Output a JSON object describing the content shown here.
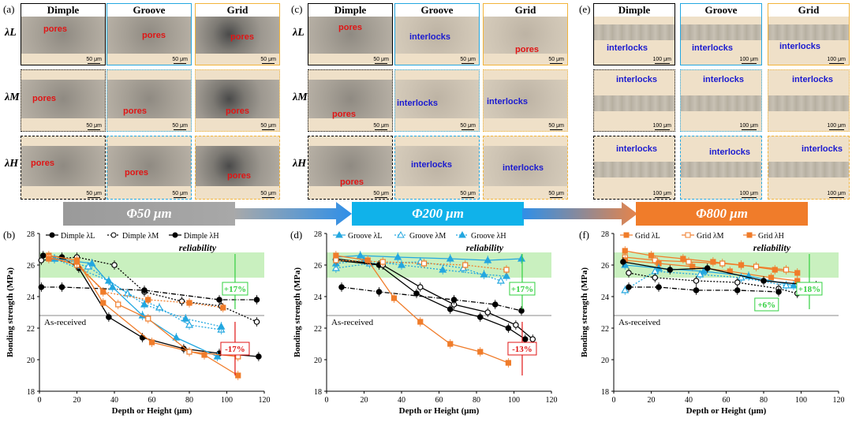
{
  "panel_labels": [
    "(a)",
    "(b)",
    "(c)",
    "(d)",
    "(e)",
    "(f)"
  ],
  "row_labels": [
    "λL",
    "λM",
    "λH"
  ],
  "column_headers": [
    "Dimple",
    "Groove",
    "Grid"
  ],
  "scale_bars": {
    "s50": "50 μm",
    "s100": "100 μm"
  },
  "annotations": {
    "pores": "pores",
    "interlocks": "interlocks"
  },
  "banners": {
    "b1": "Φ50 μm",
    "b2": "Φ200 μm",
    "b3": "Φ800 μm"
  },
  "colors": {
    "black": "#000000",
    "blue": "#23a7e0",
    "orange": "#f07c2a",
    "green_band": "#c9f0bf"
  },
  "chart_data": [
    {
      "type": "line",
      "panel": "(b)",
      "xlabel": "Depth or Height (μm)",
      "ylabel": "Bonding strength (MPa)",
      "xlim": [
        0,
        120
      ],
      "ylim": [
        18,
        28
      ],
      "xticks": [
        0,
        20,
        40,
        60,
        80,
        100,
        120
      ],
      "yticks": [
        18,
        20,
        22,
        24,
        26,
        28
      ],
      "reliability_band": [
        25.2,
        26.8
      ],
      "as_received": 22.8,
      "legend": [
        "Dimple λL",
        "Dimple λM",
        "Dimple λH"
      ],
      "annotations": {
        "reliability": "reliability",
        "as_received": "As-received",
        "up": "+17%",
        "down": "-17%"
      },
      "series": [
        {
          "name": "Dimple λL",
          "color": "#000000",
          "marker": "circle-filled",
          "style": "solid",
          "x": [
            2,
            12,
            21,
            37,
            55,
            77,
            96,
            117
          ],
          "y": [
            26.6,
            26.5,
            25.8,
            22.7,
            21.4,
            20.7,
            20.4,
            20.2
          ]
        },
        {
          "name": "Dimple λM",
          "color": "#000000",
          "marker": "circle-open",
          "style": "dot",
          "x": [
            1,
            20,
            40,
            56,
            76,
            97,
            116
          ],
          "y": [
            26.3,
            26.5,
            26.0,
            24.3,
            23.7,
            23.4,
            22.4
          ]
        },
        {
          "name": "Dimple λH",
          "color": "#000000",
          "marker": "circle-filled",
          "style": "dashdot",
          "x": [
            1,
            12,
            56,
            96,
            116
          ],
          "y": [
            24.6,
            24.6,
            24.4,
            23.8,
            23.8
          ]
        },
        {
          "name": "Groove λL",
          "color": "#23a7e0",
          "marker": "triangle-filled",
          "style": "solid",
          "x": [
            8,
            28,
            39,
            55,
            73,
            95
          ],
          "y": [
            26.4,
            26.1,
            24.6,
            22.8,
            21.4,
            20.2
          ]
        },
        {
          "name": "Groove λM",
          "color": "#23a7e0",
          "marker": "triangle-open",
          "style": "dot",
          "x": [
            8,
            26,
            47,
            64,
            80,
            97
          ],
          "y": [
            26.4,
            25.9,
            24.2,
            23.3,
            22.2,
            21.9
          ]
        },
        {
          "name": "Groove λH",
          "color": "#23a7e0",
          "marker": "triangle-filled",
          "style": "dot",
          "x": [
            8,
            37,
            56,
            78,
            97
          ],
          "y": [
            26.4,
            25.0,
            23.5,
            22.6,
            22.1
          ]
        },
        {
          "name": "Grid λL",
          "color": "#f07c2a",
          "marker": "square-filled",
          "style": "solid",
          "x": [
            5,
            20,
            34,
            60,
            88,
            106
          ],
          "y": [
            26.6,
            26.3,
            23.6,
            21.1,
            20.3,
            19.0
          ]
        },
        {
          "name": "Grid λM",
          "color": "#f07c2a",
          "marker": "square-open",
          "style": "solid",
          "x": [
            5,
            20,
            42,
            58,
            80,
            106
          ],
          "y": [
            26.5,
            26.0,
            23.5,
            22.6,
            20.5,
            20.2
          ]
        },
        {
          "name": "Grid λH",
          "color": "#f07c2a",
          "marker": "square-filled",
          "style": "dot",
          "x": [
            5,
            20,
            34,
            58,
            80,
            98
          ],
          "y": [
            26.4,
            26.2,
            24.3,
            23.8,
            23.6,
            23.3
          ]
        }
      ]
    },
    {
      "type": "line",
      "panel": "(d)",
      "xlabel": "Depth or Height (μm)",
      "ylabel": "Bonding strength (MPa)",
      "xlim": [
        0,
        120
      ],
      "ylim": [
        18,
        28
      ],
      "xticks": [
        0,
        20,
        40,
        60,
        80,
        100,
        120
      ],
      "yticks": [
        18,
        20,
        22,
        24,
        26,
        28
      ],
      "reliability_band": [
        25.2,
        26.8
      ],
      "as_received": 22.8,
      "legend": [
        "Groove λL",
        "Groove λM",
        "Groove λH"
      ],
      "annotations": {
        "reliability": "reliability",
        "as_received": "As-received",
        "up": "+17%",
        "down": "-13%"
      },
      "series": [
        {
          "name": "Groove λL",
          "color": "#23a7e0",
          "marker": "triangle-filled",
          "style": "solid",
          "x": [
            5,
            18,
            38,
            66,
            86,
            104
          ],
          "y": [
            26.5,
            26.6,
            26.5,
            26.4,
            26.3,
            26.4
          ]
        },
        {
          "name": "Groove λM",
          "color": "#23a7e0",
          "marker": "triangle-open",
          "style": "dot",
          "x": [
            5,
            23,
            50,
            73,
            93
          ],
          "y": [
            25.8,
            26.1,
            26.2,
            25.8,
            25.0
          ]
        },
        {
          "name": "Groove λH",
          "color": "#23a7e0",
          "marker": "triangle-filled",
          "style": "dot",
          "x": [
            5,
            20,
            40,
            62,
            84,
            96
          ],
          "y": [
            26.1,
            26.3,
            26.0,
            25.7,
            25.4,
            25.3
          ]
        },
        {
          "name": "Dimple λL",
          "color": "#000000",
          "marker": "circle-filled",
          "style": "solid",
          "x": [
            5,
            28,
            48,
            66,
            82,
            97,
            106
          ],
          "y": [
            26.3,
            26.0,
            24.2,
            23.2,
            22.7,
            22.0,
            21.3
          ]
        },
        {
          "name": "Dimple λM",
          "color": "#000000",
          "marker": "circle-open",
          "style": "solid",
          "x": [
            5,
            30,
            50,
            68,
            86,
            101,
            110
          ],
          "y": [
            26.4,
            26.0,
            24.6,
            23.5,
            23.0,
            22.2,
            21.3
          ]
        },
        {
          "name": "Dimple λH",
          "color": "#000000",
          "marker": "circle-filled",
          "style": "dashdot",
          "x": [
            8,
            28,
            68,
            90,
            104
          ],
          "y": [
            24.6,
            24.3,
            23.8,
            23.5,
            23.1
          ]
        },
        {
          "name": "Grid λL",
          "color": "#f07c2a",
          "marker": "square-filled",
          "style": "solid",
          "x": [
            5,
            22,
            36,
            50,
            66,
            82,
            97
          ],
          "y": [
            26.6,
            26.3,
            23.9,
            22.4,
            21.0,
            20.5,
            19.8
          ]
        },
        {
          "name": "Grid λM",
          "color": "#f07c2a",
          "marker": "square-open",
          "style": "dot",
          "x": [
            5,
            30,
            52,
            74,
            96
          ],
          "y": [
            26.3,
            26.2,
            26.1,
            26.0,
            25.7
          ]
        }
      ]
    },
    {
      "type": "line",
      "panel": "(f)",
      "xlabel": "Depth or Height (μm)",
      "ylabel": "Bonding strength (MPa)",
      "xlim": [
        0,
        120
      ],
      "ylim": [
        18,
        28
      ],
      "xticks": [
        0,
        20,
        40,
        60,
        80,
        100,
        120
      ],
      "yticks": [
        18,
        20,
        22,
        24,
        26,
        28
      ],
      "reliability_band": [
        25.2,
        26.8
      ],
      "as_received": 22.8,
      "legend": [
        "Grid λL",
        "Grid λM",
        "Grid λH"
      ],
      "annotations": {
        "reliability": "reliability",
        "as_received": "As-received",
        "up": "+18%",
        "up2": "+6%"
      },
      "series": [
        {
          "name": "Grid λL",
          "color": "#f07c2a",
          "marker": "square-filled",
          "style": "solid",
          "x": [
            6,
            20,
            37,
            53,
            68,
            86,
            98
          ],
          "y": [
            26.9,
            26.6,
            26.4,
            26.2,
            26.0,
            25.7,
            25.5
          ]
        },
        {
          "name": "Grid λM",
          "color": "#f07c2a",
          "marker": "square-open",
          "style": "solid",
          "x": [
            6,
            22,
            40,
            58,
            76,
            92
          ],
          "y": [
            26.5,
            26.3,
            26.2,
            26.1,
            25.9,
            25.7
          ]
        },
        {
          "name": "Grid λH",
          "color": "#f07c2a",
          "marker": "square-filled",
          "style": "solid",
          "x": [
            6,
            24,
            42,
            62,
            84,
            98
          ],
          "y": [
            26.3,
            26.1,
            25.9,
            25.6,
            25.2,
            25.0
          ]
        },
        {
          "name": "Groove λL",
          "color": "#23a7e0",
          "marker": "triangle-filled",
          "style": "solid",
          "x": [
            6,
            24,
            48,
            72,
            96
          ],
          "y": [
            26.0,
            25.8,
            25.6,
            25.3,
            24.7
          ]
        },
        {
          "name": "Groove λM",
          "color": "#23a7e0",
          "marker": "triangle-open",
          "style": "dot",
          "x": [
            6,
            22,
            46,
            68,
            92
          ],
          "y": [
            24.4,
            25.6,
            25.4,
            25.2,
            24.7
          ]
        },
        {
          "name": "Dimple λL",
          "color": "#000000",
          "marker": "circle-filled",
          "style": "solid",
          "x": [
            5,
            30,
            50,
            80,
            108
          ],
          "y": [
            26.2,
            25.7,
            25.8,
            25.0,
            24.7
          ]
        },
        {
          "name": "Dimple λM",
          "color": "#000000",
          "marker": "circle-open",
          "style": "dot",
          "x": [
            8,
            22,
            44,
            66,
            88,
            98
          ],
          "y": [
            25.5,
            25.2,
            25.0,
            24.9,
            24.5,
            24.2
          ]
        },
        {
          "name": "Dimple λH",
          "color": "#000000",
          "marker": "circle-filled",
          "style": "dashdot",
          "x": [
            8,
            24,
            44,
            66,
            88
          ],
          "y": [
            24.6,
            24.6,
            24.4,
            24.4,
            24.3
          ]
        }
      ]
    }
  ]
}
